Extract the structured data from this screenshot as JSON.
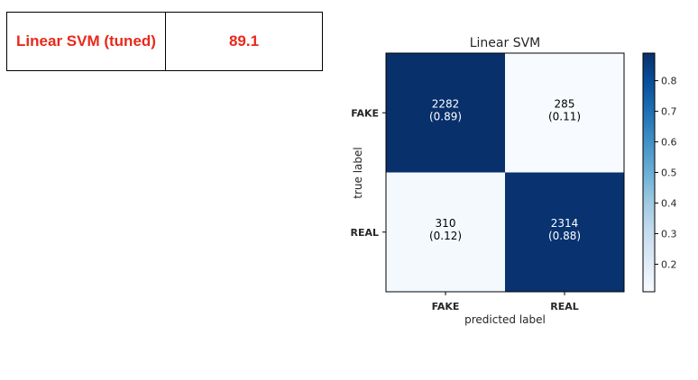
{
  "results_table": {
    "model": "Linear SVM (tuned)",
    "score": "89.1",
    "text_color": "#e8291c"
  },
  "chart_data": {
    "type": "heatmap",
    "title": "Linear SVM",
    "xlabel": "predicted label",
    "ylabel": "true label",
    "x_categories": [
      "FAKE",
      "REAL"
    ],
    "y_categories": [
      "FAKE",
      "REAL"
    ],
    "counts": [
      [
        2282,
        285
      ],
      [
        310,
        2314
      ]
    ],
    "normalized": [
      [
        0.89,
        0.11
      ],
      [
        0.12,
        0.88
      ]
    ],
    "normalized_labels": [
      [
        "(0.89)",
        "(0.11)"
      ],
      [
        "(0.12)",
        "(0.88)"
      ]
    ],
    "colormap": "Blues",
    "colorbar": {
      "range": [
        0.11,
        0.89
      ],
      "ticks": [
        0.2,
        0.3,
        0.4,
        0.5,
        0.6,
        0.7,
        0.8
      ],
      "tick_labels": [
        "0.2",
        "0.3",
        "0.4",
        "0.5",
        "0.6",
        "0.7",
        "0.8"
      ]
    },
    "grid": false
  }
}
